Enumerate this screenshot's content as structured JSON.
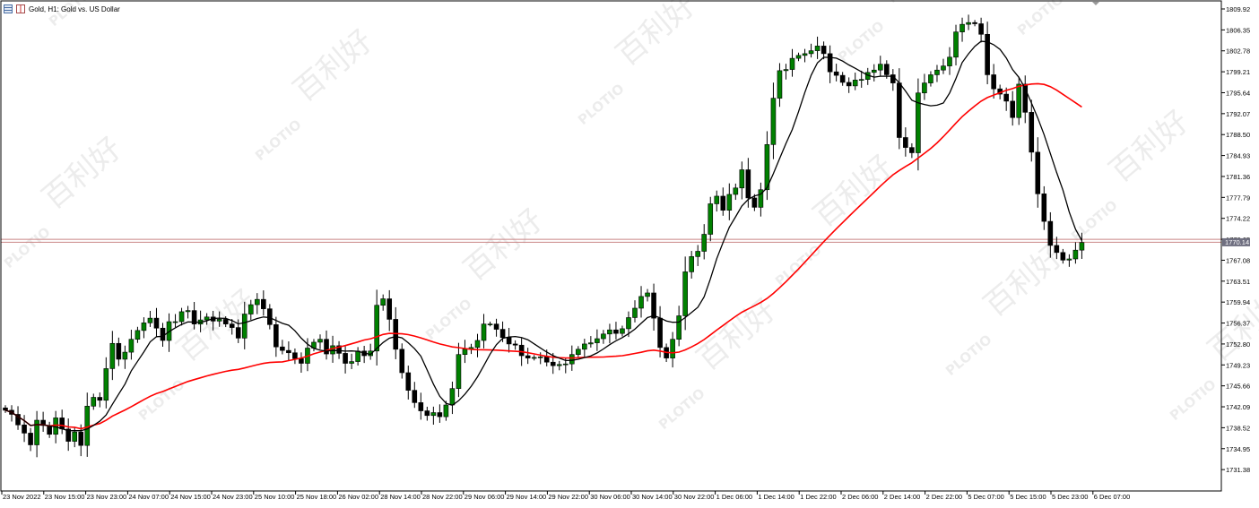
{
  "window": {
    "title": "Gold, H1:  Gold vs. US Dollar",
    "icons": [
      "chart-list-icon",
      "chart-type-icon"
    ],
    "scroll_marker_icon": "triangle-down-icon"
  },
  "watermark": {
    "logo": "PLOTIO",
    "chinese": "百利好"
  },
  "colors": {
    "bull": "#008000",
    "bear": "#000000",
    "wick": "#000000",
    "ma_fast": "#000000",
    "ma_slow": "#ff0000",
    "hline": "#c98585",
    "price_tag_bg": "#6f6f80",
    "price_tag_text": "#ffffff"
  },
  "chart_data": {
    "type": "candlestick",
    "symbol": "Gold",
    "timeframe": "H1",
    "y_ticks": [
      "1809.92",
      "1806.35",
      "1802.78",
      "1799.21",
      "1795.64",
      "1792.07",
      "1788.50",
      "1784.93",
      "1781.36",
      "1777.79",
      "1774.22",
      "1770.65",
      "1767.08",
      "1763.51",
      "1759.94",
      "1756.37",
      "1752.80",
      "1749.23",
      "1745.66",
      "1742.09",
      "1738.52",
      "1734.95",
      "1731.38"
    ],
    "y_range": [
      1728.0,
      1812.0
    ],
    "x_labels": [
      "23 Nov 2022",
      "23 Nov 15:00",
      "23 Nov 23:00",
      "24 Nov 07:00",
      "24 Nov 15:00",
      "24 Nov 23:00",
      "25 Nov 10:00",
      "25 Nov 18:00",
      "26 Nov 02:00",
      "28 Nov 14:00",
      "28 Nov 22:00",
      "29 Nov 06:00",
      "29 Nov 14:00",
      "29 Nov 22:00",
      "30 Nov 06:00",
      "30 Nov 14:00",
      "30 Nov 22:00",
      "1 Dec 06:00",
      "1 Dec 14:00",
      "1 Dec 22:00",
      "2 Dec 06:00",
      "2 Dec 14:00",
      "2 Dec 22:00",
      "5 Dec 07:00",
      "5 Dec 15:00",
      "5 Dec 23:00",
      "6 Dec 07:00"
    ],
    "current_price": "1770.14",
    "horizontal_line": 1770.65,
    "ma_fast_label": "",
    "ma_slow_label": "",
    "closes": [
      1741.5,
      1740.8,
      1739.0,
      1737.6,
      1735.6,
      1739.8,
      1738.9,
      1737.4,
      1740.2,
      1738.3,
      1736.2,
      1737.8,
      1735.5,
      1742.2,
      1743.7,
      1743.2,
      1748.6,
      1752.9,
      1750.2,
      1751.4,
      1753.6,
      1755.1,
      1756.4,
      1757.2,
      1755.5,
      1753.4,
      1756.6,
      1756.6,
      1758.3,
      1758.5,
      1756.2,
      1756.9,
      1757.4,
      1756.7,
      1757.0,
      1756.2,
      1755.6,
      1753.8,
      1757.9,
      1759.5,
      1760.4,
      1758.8,
      1756.1,
      1752.3,
      1751.7,
      1751.3,
      1750.3,
      1749.5,
      1752.1,
      1753.1,
      1753.6,
      1751.1,
      1752.5,
      1751.2,
      1749.5,
      1749.8,
      1751.6,
      1750.8,
      1751.6,
      1759.4,
      1760.5,
      1757.0,
      1751.9,
      1747.9,
      1744.9,
      1742.8,
      1741.4,
      1740.6,
      1741.1,
      1740.4,
      1742.4,
      1745.2,
      1751.0,
      1751.9,
      1752.2,
      1753.4,
      1756.2,
      1756.2,
      1755.3,
      1753.9,
      1752.8,
      1752.6,
      1750.8,
      1750.4,
      1750.5,
      1750.6,
      1749.7,
      1749.1,
      1749.3,
      1749.4,
      1751.0,
      1751.9,
      1752.8,
      1753.0,
      1753.7,
      1754.5,
      1755.2,
      1754.6,
      1755.4,
      1757.3,
      1758.9,
      1760.9,
      1761.5,
      1757.2,
      1752.2,
      1750.4,
      1753.6,
      1757.6,
      1765.1,
      1767.7,
      1768.6,
      1771.5,
      1776.7,
      1778.0,
      1775.6,
      1778.3,
      1779.4,
      1782.5,
      1777.7,
      1776.1,
      1779.1,
      1786.8,
      1794.7,
      1799.4,
      1799.6,
      1801.5,
      1802.0,
      1802.3,
      1802.8,
      1803.6,
      1802.3,
      1799.2,
      1798.6,
      1797.4,
      1796.8,
      1797.8,
      1797.9,
      1799.1,
      1799.5,
      1800.5,
      1798.7,
      1797.3,
      1788.0,
      1786.3,
      1785.4,
      1795.6,
      1797.3,
      1798.7,
      1799.5,
      1800.2,
      1801.7,
      1806.0,
      1807.3,
      1807.6,
      1807.4,
      1805.6,
      1798.7,
      1796.3,
      1795.4,
      1794.2,
      1791.4,
      1797.1,
      1792.3,
      1785.5,
      1778.4,
      1773.7,
      1769.6,
      1768.4,
      1767.1,
      1767.3,
      1768.8,
      1770.1
    ]
  }
}
